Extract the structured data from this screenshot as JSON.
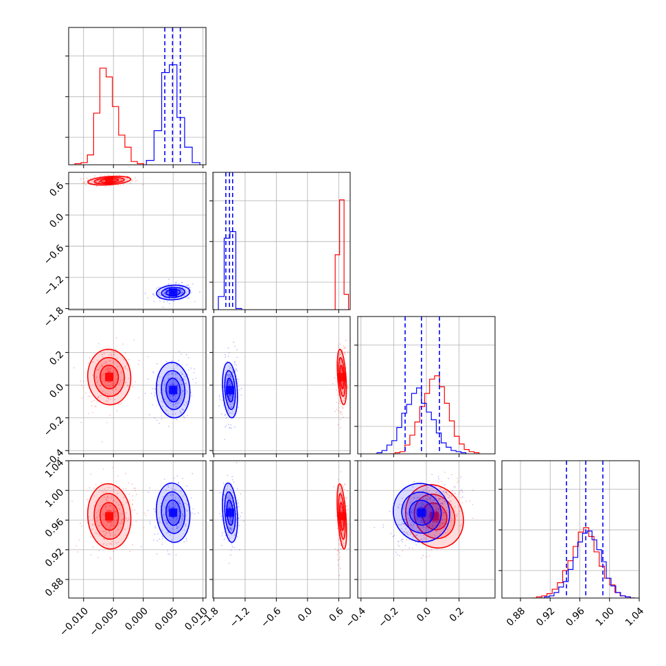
{
  "chart_data": {
    "type": "corner",
    "series": [
      {
        "name": "",
        "color": "#ff0000",
        "mean": [
          -0.0057,
          0.66,
          0.05,
          0.965
        ],
        "sd": [
          0.0018,
          0.04,
          0.085,
          0.022
        ],
        "hist": [
          [
            0.01,
            0.02,
            0.09,
            0.47,
            0.88,
            0.8,
            0.53,
            0.27,
            0.16,
            0.03,
            0.01
          ],
          [
            0.5,
            1.0,
            0.14
          ],
          [
            0.0,
            0.01,
            0.02,
            0.08,
            0.17,
            0.29,
            0.43,
            0.55,
            0.68,
            0.71,
            0.61,
            0.46,
            0.3,
            0.16,
            0.09,
            0.04,
            0.02,
            0.01
          ],
          [
            0.0,
            0.01,
            0.02,
            0.04,
            0.08,
            0.14,
            0.25,
            0.34,
            0.47,
            0.6,
            0.64,
            0.56,
            0.42,
            0.29,
            0.18,
            0.12,
            0.05,
            0.02,
            0.01,
            0.0
          ]
        ]
      },
      {
        "name": "",
        "color": "#0000ff",
        "mean": [
          0.005,
          -1.49,
          -0.03,
          0.97
        ],
        "sd": [
          0.0014,
          0.07,
          0.085,
          0.02
        ],
        "hist": [
          [
            0.04,
            0.31,
            0.84,
            0.91,
            0.43,
            0.16,
            0.02
          ],
          [
            0.12,
            0.65,
            0.71,
            0.01
          ],
          [
            0.01,
            0.03,
            0.08,
            0.12,
            0.24,
            0.37,
            0.45,
            0.55,
            0.6,
            0.46,
            0.38,
            0.31,
            0.19,
            0.1,
            0.06,
            0.03,
            0.02,
            0.01
          ],
          [
            0.0,
            0.01,
            0.02,
            0.05,
            0.1,
            0.15,
            0.26,
            0.37,
            0.51,
            0.59,
            0.61,
            0.53,
            0.44,
            0.33,
            0.18,
            0.11,
            0.05,
            0.02,
            0.01,
            0.0
          ]
        ]
      }
    ],
    "quantile_lines": [
      [
        0.0036,
        0.0049,
        0.0062
      ],
      [
        -1.57,
        -1.5,
        -1.44
      ],
      [
        -0.13,
        -0.03,
        0.08
      ],
      [
        0.942,
        0.968,
        0.991
      ]
    ],
    "quantile_color": "#0000ff",
    "grid": true,
    "axes": [
      {
        "lim": [
          -0.0125,
          0.0105
        ],
        "ticks": [
          -0.01,
          -0.005,
          0.0,
          0.005,
          0.01
        ],
        "ticklabels": [
          "−0.010",
          "−0.005",
          "0.000",
          "0.005",
          "0.010"
        ]
      },
      {
        "lim": [
          -1.82,
          0.82
        ],
        "ticks": [
          -1.8,
          -1.2,
          -0.6,
          0.0,
          0.6
        ],
        "ticklabels": [
          "−1.8",
          "−1.2",
          "−0.6",
          "0.0",
          "0.6"
        ]
      },
      {
        "lim": [
          -0.42,
          0.42
        ],
        "ticks": [
          -0.4,
          -0.2,
          0.0,
          0.2
        ],
        "ticklabels": [
          "−0.4",
          "−0.2",
          "0.0",
          "0.2"
        ]
      },
      {
        "lim": [
          0.855,
          1.04
        ],
        "ticks": [
          0.88,
          0.92,
          0.96,
          1.0,
          1.04
        ],
        "ticklabels": [
          "0.88",
          "0.92",
          "0.96",
          "1.00",
          "1.04"
        ]
      }
    ]
  }
}
